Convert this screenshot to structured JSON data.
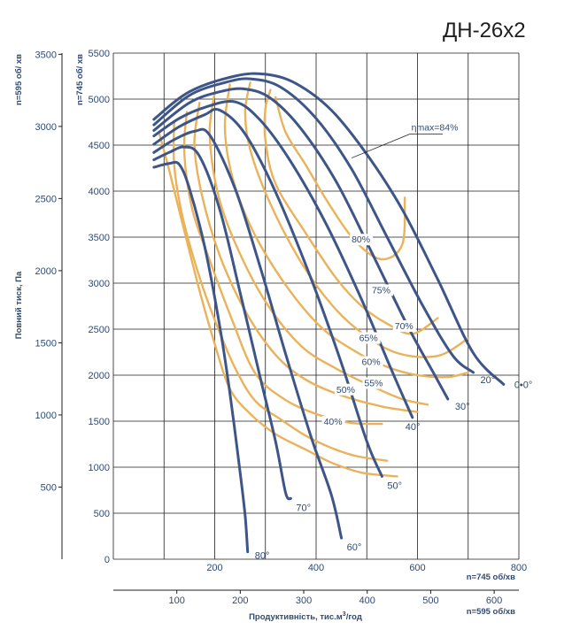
{
  "chart_data": {
    "type": "line",
    "title": "ДН-26х2",
    "ylabel": "Повний тиск,  Па",
    "xlabel_prefix": "Продуктивність, тис.м",
    "xlabel_sup": "3",
    "xlabel_suffix": "/год",
    "speed_745_label": "n=745 об/хв",
    "speed_595_label": "n=595 об/хв",
    "speed_595_left_label": "n=595 об/ хв",
    "speed_745_left_label": "n=745 об/ хв",
    "grid": true,
    "x_745": {
      "range": [
        0,
        800
      ],
      "ticks": [
        "200",
        "400",
        "600",
        "800"
      ],
      "tick_values": [
        200,
        400,
        600,
        800
      ]
    },
    "y_745": {
      "range": [
        0,
        5500
      ],
      "ticks": [
        "0",
        "500",
        "1000",
        "1500",
        "2000",
        "2500",
        "3000",
        "3500",
        "4000",
        "4500",
        "5000",
        "5500"
      ],
      "tick_values": [
        0,
        500,
        1000,
        1500,
        2000,
        2500,
        3000,
        3500,
        4000,
        4500,
        5000,
        5500
      ]
    },
    "x_595": {
      "ticks": [
        "100",
        "200",
        "300",
        "400",
        "500",
        "600"
      ],
      "tick_values": [
        100,
        200,
        300,
        400,
        500,
        600
      ]
    },
    "y_595": {
      "ticks": [
        "500",
        "1000",
        "1500",
        "2000",
        "2500",
        "3000",
        "3500"
      ],
      "tick_values": [
        500,
        1000,
        1500,
        2000,
        2500,
        3000,
        3500
      ]
    },
    "blade_angle_curves": [
      {
        "name": "0°",
        "label": "0•0°",
        "points": [
          [
            80,
            4780
          ],
          [
            150,
            5080
          ],
          [
            240,
            5250
          ],
          [
            300,
            5270
          ],
          [
            360,
            5170
          ],
          [
            430,
            4880
          ],
          [
            500,
            4400
          ],
          [
            570,
            3800
          ],
          [
            640,
            3040
          ],
          [
            710,
            2240
          ],
          [
            770,
            1900
          ]
        ]
      },
      {
        "name": "20°",
        "label": "20°",
        "points": [
          [
            80,
            4720
          ],
          [
            150,
            5040
          ],
          [
            220,
            5180
          ],
          [
            270,
            5220
          ],
          [
            330,
            5130
          ],
          [
            400,
            4790
          ],
          [
            470,
            4240
          ],
          [
            540,
            3500
          ],
          [
            610,
            2760
          ],
          [
            670,
            2210
          ],
          [
            710,
            2030
          ]
        ]
      },
      {
        "name": "30°",
        "label": "30°",
        "points": [
          [
            80,
            4660
          ],
          [
            150,
            4960
          ],
          [
            210,
            5080
          ],
          [
            260,
            5110
          ],
          [
            310,
            5010
          ],
          [
            370,
            4680
          ],
          [
            440,
            4100
          ],
          [
            510,
            3330
          ],
          [
            580,
            2540
          ],
          [
            630,
            2040
          ],
          [
            660,
            1740
          ]
        ]
      },
      {
        "name": "40°",
        "label": "40°",
        "points": [
          [
            80,
            4600
          ],
          [
            130,
            4790
          ],
          [
            180,
            4910
          ],
          [
            240,
            4970
          ],
          [
            290,
            4770
          ],
          [
            350,
            4320
          ],
          [
            420,
            3640
          ],
          [
            490,
            2820
          ],
          [
            550,
            2040
          ],
          [
            590,
            1540
          ]
        ]
      },
      {
        "name": "50°",
        "label": "50°",
        "points": [
          [
            80,
            4510
          ],
          [
            130,
            4700
          ],
          [
            180,
            4830
          ],
          [
            210,
            4880
          ],
          [
            260,
            4620
          ],
          [
            320,
            3990
          ],
          [
            390,
            3050
          ],
          [
            450,
            2130
          ],
          [
            500,
            1280
          ],
          [
            530,
            900
          ]
        ]
      },
      {
        "name": "60°",
        "label": "60°",
        "points": [
          [
            80,
            4420
          ],
          [
            120,
            4560
          ],
          [
            160,
            4650
          ],
          [
            190,
            4610
          ],
          [
            240,
            4030
          ],
          [
            290,
            3170
          ],
          [
            340,
            2230
          ],
          [
            390,
            1330
          ],
          [
            430,
            700
          ],
          [
            450,
            230
          ]
        ]
      },
      {
        "name": "70°",
        "label": "70°",
        "points": [
          [
            80,
            4340
          ],
          [
            110,
            4420
          ],
          [
            140,
            4480
          ],
          [
            170,
            4380
          ],
          [
            210,
            3800
          ],
          [
            250,
            2900
          ],
          [
            290,
            1970
          ],
          [
            320,
            1280
          ],
          [
            340,
            720
          ],
          [
            350,
            660
          ]
        ]
      },
      {
        "name": "80°",
        "label": "80°",
        "points": [
          [
            80,
            4260
          ],
          [
            110,
            4300
          ],
          [
            130,
            4290
          ],
          [
            150,
            4030
          ],
          [
            180,
            3400
          ],
          [
            210,
            2530
          ],
          [
            230,
            1800
          ],
          [
            250,
            950
          ],
          [
            260,
            470
          ],
          [
            265,
            80
          ]
        ]
      }
    ],
    "efficiency_curves": [
      {
        "name": "ηmax=84%",
        "label": "ηmax=84%",
        "points": [
          [
            320,
            5020
          ],
          [
            340,
            4640
          ],
          [
            380,
            4280
          ],
          [
            430,
            3820
          ],
          [
            480,
            3440
          ],
          [
            530,
            3260
          ],
          [
            570,
            3420
          ],
          [
            575,
            3930
          ]
        ]
      },
      {
        "name": "80%",
        "label": "80%",
        "points": [
          [
            310,
            5100
          ],
          [
            300,
            4900
          ],
          [
            300,
            4550
          ],
          [
            320,
            4080
          ],
          [
            380,
            3540
          ],
          [
            440,
            3050
          ],
          [
            490,
            2750
          ],
          [
            540,
            2560
          ],
          [
            590,
            2450
          ],
          [
            640,
            2620
          ]
        ]
      },
      {
        "name": "75%",
        "label": "75%",
        "points": [
          [
            270,
            5180
          ],
          [
            260,
            4860
          ],
          [
            270,
            4450
          ],
          [
            310,
            3860
          ],
          [
            370,
            3230
          ],
          [
            430,
            2770
          ],
          [
            490,
            2460
          ],
          [
            560,
            2240
          ],
          [
            640,
            2210
          ],
          [
            700,
            2400
          ]
        ]
      },
      {
        "name": "70%",
        "label": "70%",
        "points": [
          [
            230,
            5160
          ],
          [
            220,
            4690
          ],
          [
            235,
            4150
          ],
          [
            275,
            3570
          ],
          [
            340,
            2980
          ],
          [
            410,
            2520
          ],
          [
            480,
            2250
          ],
          [
            540,
            2090
          ],
          [
            600,
            2000
          ],
          [
            660,
            1980
          ],
          [
            700,
            2030
          ]
        ]
      },
      {
        "name": "65%",
        "label": "65%",
        "points": [
          [
            200,
            5070
          ],
          [
            190,
            4620
          ],
          [
            205,
            4000
          ],
          [
            240,
            3440
          ],
          [
            300,
            2800
          ],
          [
            370,
            2320
          ],
          [
            440,
            2070
          ],
          [
            510,
            1880
          ],
          [
            570,
            1740
          ],
          [
            620,
            1680
          ]
        ]
      },
      {
        "name": "60%",
        "label": "60%",
        "points": [
          [
            170,
            4960
          ],
          [
            160,
            4510
          ],
          [
            175,
            3950
          ],
          [
            210,
            3300
          ],
          [
            260,
            2700
          ],
          [
            320,
            2220
          ],
          [
            380,
            1950
          ],
          [
            450,
            1780
          ],
          [
            530,
            1660
          ],
          [
            600,
            1600
          ]
        ]
      },
      {
        "name": "55%",
        "label": "55%",
        "points": [
          [
            145,
            4860
          ],
          [
            140,
            4420
          ],
          [
            155,
            3820
          ],
          [
            190,
            3250
          ],
          [
            235,
            2590
          ],
          [
            280,
            2020
          ],
          [
            340,
            1730
          ],
          [
            410,
            1560
          ],
          [
            470,
            1480
          ],
          [
            530,
            1470
          ]
        ]
      },
      {
        "name": "50%",
        "label": "50%",
        "points": [
          [
            120,
            4760
          ],
          [
            120,
            4290
          ],
          [
            135,
            3760
          ],
          [
            165,
            3150
          ],
          [
            200,
            2600
          ],
          [
            240,
            2080
          ],
          [
            280,
            1720
          ],
          [
            330,
            1520
          ],
          [
            380,
            1340
          ],
          [
            430,
            1210
          ],
          [
            480,
            1120
          ],
          [
            540,
            1070
          ]
        ]
      },
      {
        "name": "40%",
        "label": "40%",
        "points": [
          [
            90,
            4640
          ],
          [
            110,
            4230
          ],
          [
            140,
            3570
          ],
          [
            170,
            2920
          ],
          [
            200,
            2340
          ],
          [
            230,
            1850
          ],
          [
            270,
            1580
          ],
          [
            320,
            1360
          ],
          [
            380,
            1190
          ],
          [
            430,
            1050
          ],
          [
            490,
            940
          ],
          [
            560,
            900
          ]
        ]
      }
    ]
  }
}
